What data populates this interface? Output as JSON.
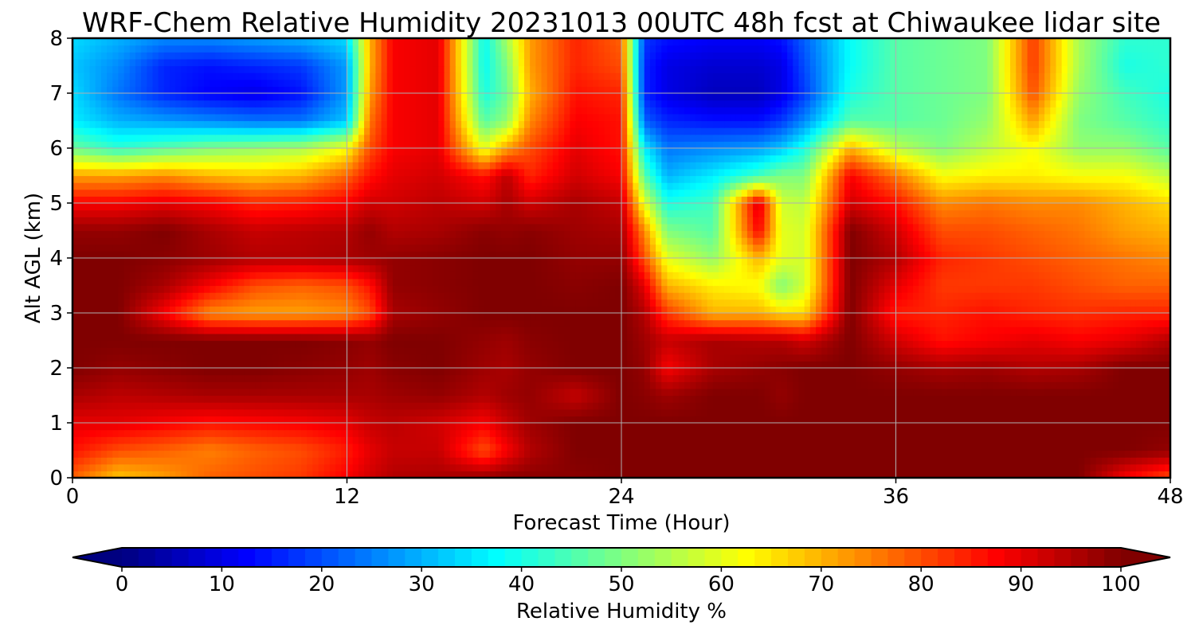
{
  "chart_data": {
    "type": "heatmap",
    "title": "WRF-Chem Relative Humidity 20231013 00UTC 48h fcst at Chiwaukee lidar site",
    "xlabel": "Forecast Time (Hour)",
    "ylabel": "Alt AGL (km)",
    "xlim": [
      0,
      48
    ],
    "ylim": [
      0,
      8
    ],
    "xticks": [
      "0",
      "12",
      "24",
      "36",
      "48"
    ],
    "yticks": [
      "0",
      "1",
      "2",
      "3",
      "4",
      "5",
      "6",
      "7",
      "8"
    ],
    "grid": true,
    "colormap": "jet",
    "colorbar": {
      "label": "Relative Humidity %",
      "range": [
        0,
        100
      ],
      "ticks": [
        "0",
        "10",
        "20",
        "30",
        "40",
        "50",
        "60",
        "70",
        "80",
        "90",
        "100"
      ],
      "extend": "both",
      "orientation": "horizontal"
    },
    "x": [
      0,
      2,
      4,
      6,
      8,
      10,
      12,
      13,
      14,
      16,
      18,
      19,
      20,
      22,
      24,
      25,
      26,
      28,
      30,
      31,
      32,
      34,
      36,
      38,
      40,
      42,
      44,
      46,
      48
    ],
    "y": [
      0,
      0.5,
      1,
      1.5,
      2,
      2.5,
      3,
      3.5,
      4,
      4.5,
      5,
      5.5,
      6,
      6.5,
      7,
      7.5,
      8
    ],
    "z": [
      [
        78,
        68,
        72,
        78,
        80,
        82,
        88,
        92,
        95,
        96,
        98,
        99,
        99,
        99,
        100,
        100,
        100,
        100,
        100,
        100,
        100,
        100,
        100,
        100,
        100,
        100,
        100,
        88,
        80
      ],
      [
        86,
        80,
        78,
        75,
        78,
        80,
        85,
        90,
        93,
        93,
        80,
        88,
        95,
        100,
        100,
        100,
        100,
        100,
        100,
        100,
        100,
        100,
        100,
        100,
        100,
        100,
        100,
        100,
        98
      ],
      [
        90,
        90,
        88,
        86,
        87,
        88,
        90,
        93,
        94,
        92,
        88,
        93,
        97,
        100,
        100,
        100,
        100,
        100,
        100,
        100,
        100,
        100,
        100,
        100,
        100,
        100,
        100,
        100,
        100
      ],
      [
        96,
        94,
        95,
        96,
        96,
        96,
        96,
        96,
        97,
        98,
        95,
        97,
        98,
        93,
        100,
        99,
        97,
        100,
        100,
        98,
        100,
        100,
        100,
        100,
        100,
        100,
        100,
        100,
        100
      ],
      [
        100,
        98,
        99,
        100,
        100,
        99,
        98,
        97,
        99,
        100,
        97,
        96,
        98,
        100,
        100,
        98,
        88,
        96,
        98,
        99,
        100,
        100,
        98,
        96,
        97,
        95,
        96,
        100,
        100
      ],
      [
        100,
        100,
        100,
        100,
        100,
        100,
        99,
        98,
        100,
        100,
        98,
        97,
        99,
        100,
        100,
        97,
        93,
        96,
        95,
        95,
        92,
        100,
        92,
        86,
        88,
        90,
        88,
        90,
        95
      ],
      [
        100,
        100,
        88,
        74,
        72,
        72,
        74,
        80,
        96,
        98,
        100,
        100,
        100,
        100,
        100,
        95,
        82,
        70,
        70,
        66,
        66,
        100,
        85,
        84,
        86,
        84,
        83,
        84,
        84
      ],
      [
        100,
        100,
        96,
        88,
        80,
        78,
        80,
        86,
        98,
        99,
        100,
        100,
        100,
        99,
        100,
        90,
        70,
        64,
        62,
        50,
        58,
        100,
        90,
        82,
        82,
        82,
        80,
        78,
        78
      ],
      [
        100,
        100,
        99,
        97,
        95,
        95,
        96,
        97,
        98,
        99,
        100,
        100,
        100,
        98,
        98,
        80,
        60,
        52,
        70,
        60,
        58,
        100,
        95,
        84,
        82,
        80,
        78,
        76,
        74
      ],
      [
        98,
        98,
        100,
        96,
        93,
        94,
        95,
        98,
        95,
        96,
        99,
        98,
        99,
        97,
        96,
        74,
        50,
        46,
        88,
        60,
        58,
        100,
        92,
        80,
        80,
        78,
        76,
        72,
        70
      ],
      [
        88,
        88,
        90,
        88,
        84,
        85,
        88,
        92,
        92,
        94,
        92,
        96,
        92,
        96,
        93,
        60,
        40,
        44,
        92,
        58,
        56,
        92,
        86,
        74,
        76,
        74,
        74,
        70,
        66
      ],
      [
        72,
        72,
        74,
        70,
        68,
        70,
        78,
        86,
        90,
        92,
        86,
        94,
        84,
        92,
        88,
        46,
        30,
        36,
        44,
        50,
        50,
        88,
        76,
        62,
        64,
        64,
        62,
        62,
        56
      ],
      [
        48,
        42,
        46,
        50,
        52,
        54,
        62,
        80,
        88,
        90,
        60,
        72,
        80,
        90,
        86,
        36,
        24,
        26,
        28,
        32,
        40,
        70,
        56,
        50,
        56,
        62,
        52,
        52,
        46
      ],
      [
        36,
        30,
        28,
        26,
        24,
        24,
        32,
        76,
        88,
        90,
        46,
        52,
        74,
        88,
        86,
        22,
        16,
        14,
        14,
        18,
        26,
        46,
        46,
        48,
        52,
        72,
        50,
        46,
        42
      ],
      [
        34,
        24,
        16,
        12,
        10,
        14,
        28,
        72,
        88,
        90,
        40,
        48,
        70,
        86,
        84,
        16,
        10,
        6,
        6,
        10,
        18,
        40,
        46,
        48,
        50,
        80,
        52,
        44,
        40
      ],
      [
        32,
        26,
        16,
        14,
        16,
        18,
        28,
        70,
        88,
        90,
        38,
        50,
        72,
        84,
        80,
        16,
        10,
        8,
        8,
        10,
        20,
        38,
        46,
        48,
        50,
        82,
        54,
        40,
        42
      ],
      [
        34,
        30,
        26,
        26,
        28,
        30,
        34,
        70,
        88,
        90,
        38,
        54,
        72,
        84,
        78,
        18,
        14,
        12,
        12,
        14,
        22,
        38,
        46,
        48,
        50,
        82,
        54,
        42,
        42
      ]
    ]
  }
}
